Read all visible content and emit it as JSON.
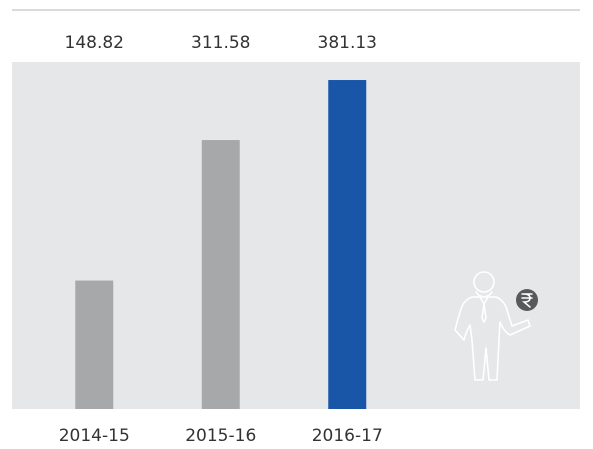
{
  "chart_data": {
    "type": "bar",
    "categories": [
      "2014-15",
      "2015-16",
      "2016-17"
    ],
    "values": [
      148.82,
      311.58,
      381.13
    ],
    "colors": [
      "#a7a8aa",
      "#a7a8aa",
      "#1a56a8"
    ],
    "ylim": [
      0,
      402
    ]
  }
}
